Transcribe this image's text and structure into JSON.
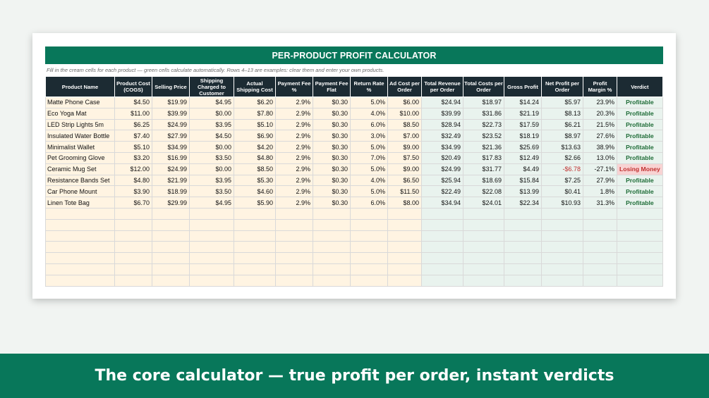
{
  "sheet": {
    "title": "PER-PRODUCT PROFIT CALCULATOR",
    "note": "Fill in the cream cells for each product — green cells calculate automatically. Rows 4–13 are examples: clear them and enter your own products."
  },
  "columns": [
    {
      "label": "Product Name",
      "kind": "in",
      "width": 98
    },
    {
      "label": "Product Cost (COGS)",
      "kind": "in",
      "width": 53
    },
    {
      "label": "Selling Price",
      "kind": "in",
      "width": 53
    },
    {
      "label": "Shipping Charged to Customer",
      "kind": "in",
      "width": 63
    },
    {
      "label": "Actual Shipping Cost",
      "kind": "in",
      "width": 59
    },
    {
      "label": "Payment Fee %",
      "kind": "in",
      "width": 53
    },
    {
      "label": "Payment Fee Flat",
      "kind": "in",
      "width": 53
    },
    {
      "label": "Return Rate %",
      "kind": "in",
      "width": 53
    },
    {
      "label": "Ad Cost per Order",
      "kind": "in",
      "width": 48
    },
    {
      "label": "Total Revenue per Order",
      "kind": "calc",
      "width": 59
    },
    {
      "label": "Total Costs per Order",
      "kind": "calc",
      "width": 58
    },
    {
      "label": "Gross Profit",
      "kind": "calc",
      "width": 53
    },
    {
      "label": "Net Profit per Order",
      "kind": "calc",
      "width": 59
    },
    {
      "label": "Profit Margin %",
      "kind": "calc",
      "width": 48
    },
    {
      "label": "Verdict",
      "kind": "calc",
      "width": 64
    }
  ],
  "rows": [
    [
      "Matte Phone Case",
      "$4.50",
      "$19.99",
      "$4.95",
      "$6.20",
      "2.9%",
      "$0.30",
      "5.0%",
      "$6.00",
      "$24.94",
      "$18.97",
      "$14.24",
      "$5.97",
      "23.9%",
      "Profitable"
    ],
    [
      "Eco Yoga Mat",
      "$11.00",
      "$39.99",
      "$0.00",
      "$7.80",
      "2.9%",
      "$0.30",
      "4.0%",
      "$10.00",
      "$39.99",
      "$31.86",
      "$21.19",
      "$8.13",
      "20.3%",
      "Profitable"
    ],
    [
      "LED Strip Lights 5m",
      "$6.25",
      "$24.99",
      "$3.95",
      "$5.10",
      "2.9%",
      "$0.30",
      "6.0%",
      "$8.50",
      "$28.94",
      "$22.73",
      "$17.59",
      "$6.21",
      "21.5%",
      "Profitable"
    ],
    [
      "Insulated Water Bottle",
      "$7.40",
      "$27.99",
      "$4.50",
      "$6.90",
      "2.9%",
      "$0.30",
      "3.0%",
      "$7.00",
      "$32.49",
      "$23.52",
      "$18.19",
      "$8.97",
      "27.6%",
      "Profitable"
    ],
    [
      "Minimalist Wallet",
      "$5.10",
      "$34.99",
      "$0.00",
      "$4.20",
      "2.9%",
      "$0.30",
      "5.0%",
      "$9.00",
      "$34.99",
      "$21.36",
      "$25.69",
      "$13.63",
      "38.9%",
      "Profitable"
    ],
    [
      "Pet Grooming Glove",
      "$3.20",
      "$16.99",
      "$3.50",
      "$4.80",
      "2.9%",
      "$0.30",
      "7.0%",
      "$7.50",
      "$20.49",
      "$17.83",
      "$12.49",
      "$2.66",
      "13.0%",
      "Profitable"
    ],
    [
      "Ceramic Mug Set",
      "$12.00",
      "$24.99",
      "$0.00",
      "$8.50",
      "2.9%",
      "$0.30",
      "5.0%",
      "$9.00",
      "$24.99",
      "$31.77",
      "$4.49",
      "-$6.78",
      "-27.1%",
      "Losing Money"
    ],
    [
      "Resistance Bands Set",
      "$4.80",
      "$21.99",
      "$3.95",
      "$5.30",
      "2.9%",
      "$0.30",
      "4.0%",
      "$6.50",
      "$25.94",
      "$18.69",
      "$15.84",
      "$7.25",
      "27.9%",
      "Profitable"
    ],
    [
      "Car Phone Mount",
      "$3.90",
      "$18.99",
      "$3.50",
      "$4.60",
      "2.9%",
      "$0.30",
      "5.0%",
      "$11.50",
      "$22.49",
      "$22.08",
      "$13.99",
      "$0.41",
      "1.8%",
      "Profitable"
    ],
    [
      "Linen Tote Bag",
      "$6.70",
      "$29.99",
      "$4.95",
      "$5.90",
      "2.9%",
      "$0.30",
      "6.0%",
      "$8.00",
      "$34.94",
      "$24.01",
      "$22.34",
      "$10.93",
      "31.3%",
      "Profitable"
    ]
  ],
  "blank_rows": 7,
  "colors": {
    "brand_green": "#08775a",
    "header_dark": "#1c2b33",
    "input_cream": "#fff4e2",
    "calc_green": "#e9f3ee",
    "loss_red": "#c0302f"
  },
  "footer": {
    "caption": "The core calculator — true profit per order, instant verdicts"
  }
}
